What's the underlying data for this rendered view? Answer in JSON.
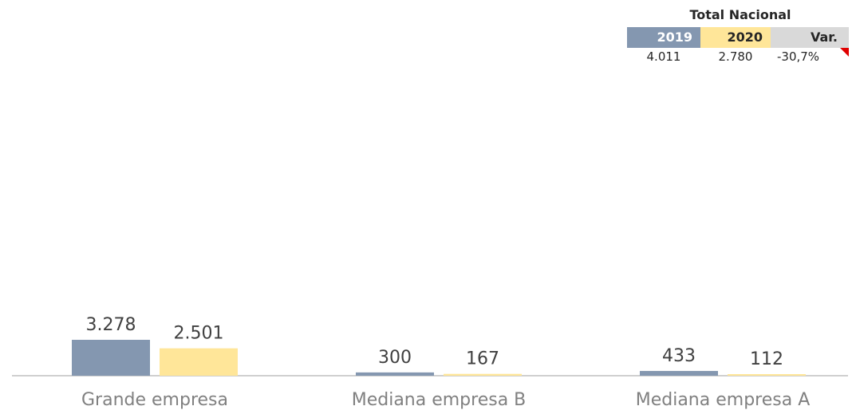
{
  "summary": {
    "title": "Total Nacional",
    "headers": [
      "2019",
      "2020",
      "Var."
    ],
    "values": [
      "4.011",
      "2.780",
      "-30,7%"
    ],
    "trend_icon": "down-triangle-icon",
    "header_colors": [
      "#8497b0",
      "#ffe699",
      "#d9d9d9"
    ],
    "trend_color": "#e00000"
  },
  "chart_data": {
    "type": "bar",
    "categories": [
      "Grande empresa",
      "Mediana empresa B",
      "Mediana empresa A"
    ],
    "series": [
      {
        "values": [
          3278,
          300,
          433
        ],
        "labels": [
          "3.278",
          "300",
          "433"
        ],
        "color": "#8497b0"
      },
      {
        "values": [
          2501,
          167,
          112
        ],
        "labels": [
          "2.501",
          "167",
          "112"
        ],
        "color": "#ffe699"
      }
    ],
    "ylim": [
      0,
      3300
    ],
    "grid": false,
    "legend": "none"
  }
}
